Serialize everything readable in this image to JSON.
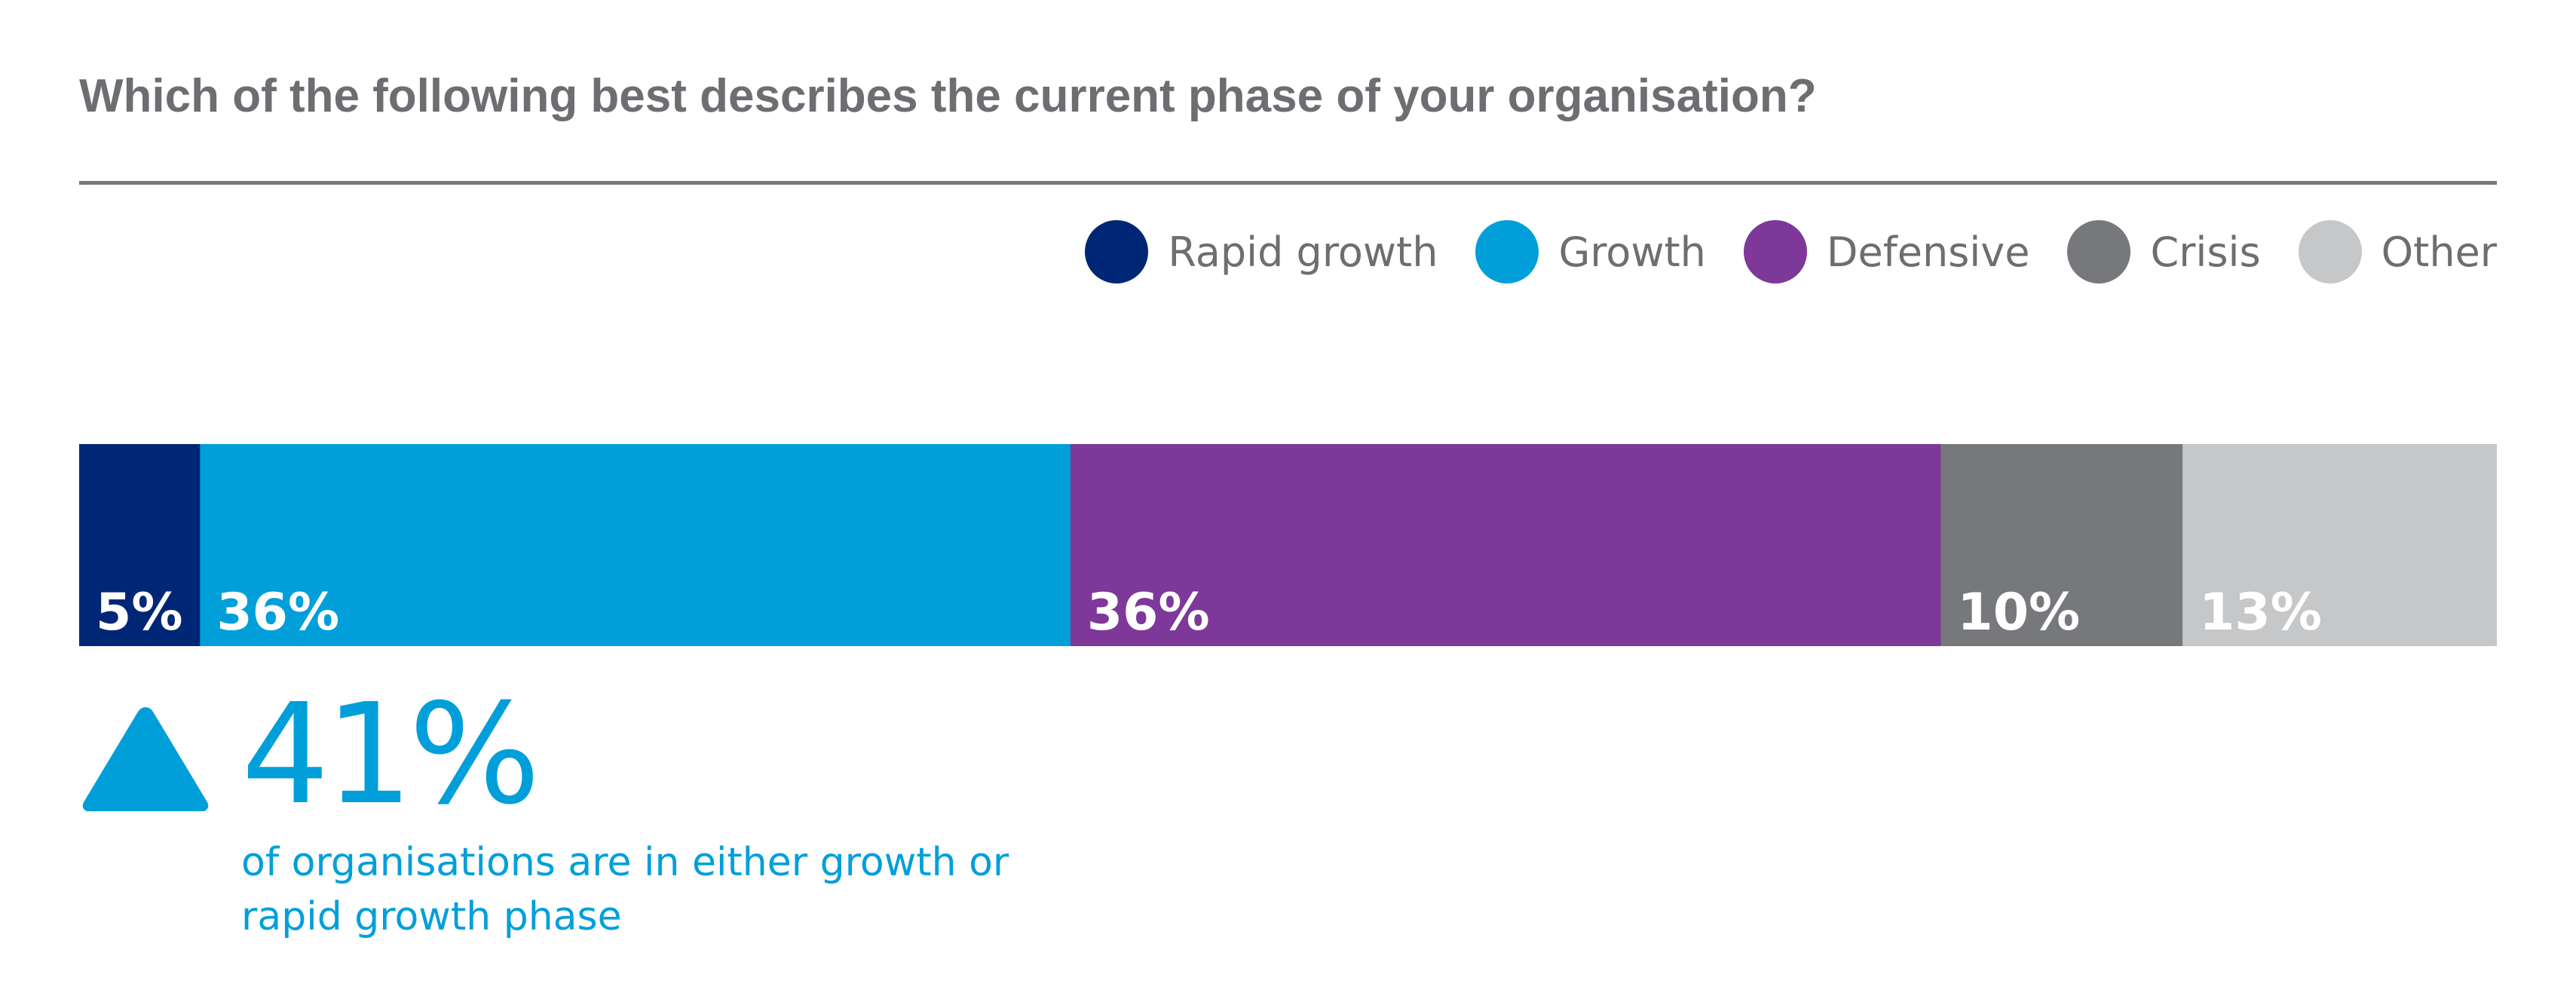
{
  "title": "Which of the following best describes the current phase of your organisation?",
  "legend": [
    {
      "label": "Rapid growth",
      "color": "#002776"
    },
    {
      "label": "Growth",
      "color": "#009fda"
    },
    {
      "label": "Defensive",
      "color": "#7d3899"
    },
    {
      "label": "Crisis",
      "color": "#77787b"
    },
    {
      "label": "Other",
      "color": "#c6c7c9"
    }
  ],
  "chart_data": {
    "type": "bar",
    "orientation": "horizontal-stacked",
    "title": "Which of the following best describes the current phase of your organisation?",
    "legend_position": "top-right",
    "grid": false,
    "xlim": [
      0,
      100
    ],
    "series": [
      {
        "name": "Rapid growth",
        "value": 5,
        "label": "5%",
        "color": "#002776"
      },
      {
        "name": "Growth",
        "value": 36,
        "label": "36%",
        "color": "#009fda"
      },
      {
        "name": "Defensive",
        "value": 36,
        "label": "36%",
        "color": "#7d3899"
      },
      {
        "name": "Crisis",
        "value": 10,
        "label": "10%",
        "color": "#77787b"
      },
      {
        "name": "Other",
        "value": 13,
        "label": "13%",
        "color": "#c6c7c9"
      }
    ]
  },
  "callout": {
    "icon": "triangle-up-icon",
    "value": "41%",
    "text": "of organisations are in either growth or rapid growth phase",
    "color": "#009fda"
  }
}
